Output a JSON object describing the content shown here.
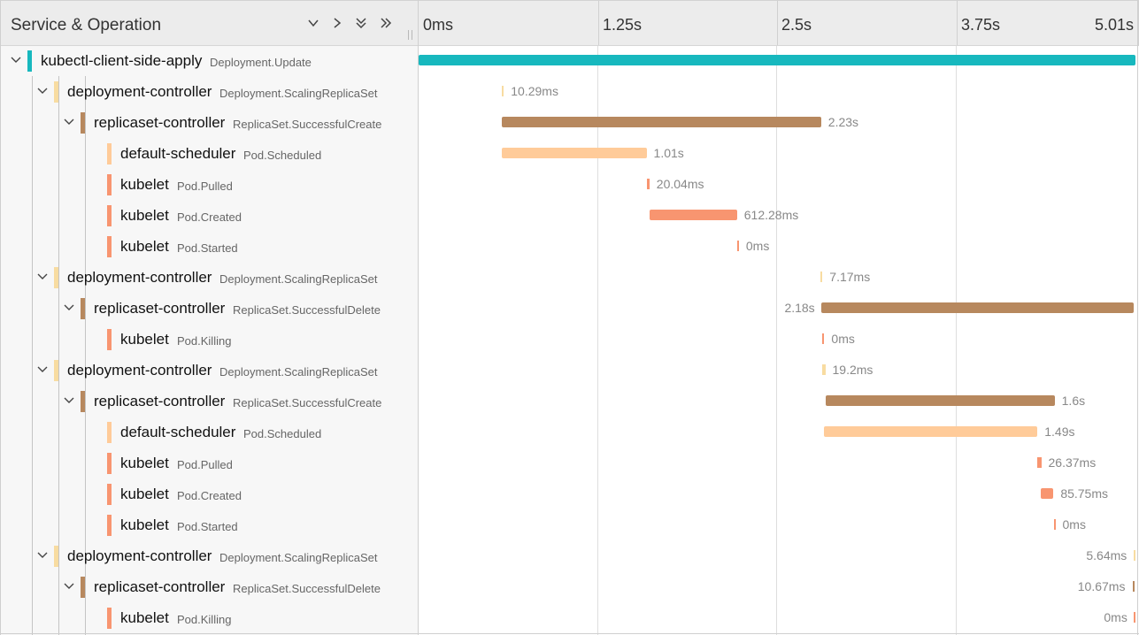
{
  "header": {
    "title": "Service & Operation",
    "ticks": [
      "0ms",
      "1.25s",
      "2.5s",
      "3.75s",
      "5.01s"
    ]
  },
  "colors": {
    "kubectl": "#17b8be",
    "deployment": "#f8dca1",
    "replicaset": "#b7885e",
    "scheduler": "#ffcb99",
    "kubelet": "#f89570"
  },
  "timeline": {
    "total_seconds": 5.01
  },
  "spans": [
    {
      "depth": 0,
      "service": "kubectl-client-side-apply",
      "operation": "Deployment.Update",
      "color_key": "kubectl",
      "has_children": true,
      "start": 0,
      "duration": 5.01,
      "duration_label": ""
    },
    {
      "depth": 1,
      "service": "deployment-controller",
      "operation": "Deployment.ScalingReplicaSet",
      "color_key": "deployment",
      "has_children": true,
      "start": 0.583,
      "duration": 0.01029,
      "duration_label": "10.29ms"
    },
    {
      "depth": 2,
      "service": "replicaset-controller",
      "operation": "ReplicaSet.SuccessfulCreate",
      "color_key": "replicaset",
      "has_children": true,
      "start": 0.583,
      "duration": 2.23,
      "duration_label": "2.23s"
    },
    {
      "depth": 3,
      "service": "default-scheduler",
      "operation": "Pod.Scheduled",
      "color_key": "scheduler",
      "has_children": false,
      "start": 0.583,
      "duration": 1.01,
      "duration_label": "1.01s"
    },
    {
      "depth": 3,
      "service": "kubelet",
      "operation": "Pod.Pulled",
      "color_key": "kubelet",
      "has_children": false,
      "start": 1.593,
      "duration": 0.02004,
      "duration_label": "20.04ms"
    },
    {
      "depth": 3,
      "service": "kubelet",
      "operation": "Pod.Created",
      "color_key": "kubelet",
      "has_children": false,
      "start": 1.613,
      "duration": 0.61228,
      "duration_label": "612.28ms"
    },
    {
      "depth": 3,
      "service": "kubelet",
      "operation": "Pod.Started",
      "color_key": "kubelet",
      "has_children": false,
      "start": 2.226,
      "duration": 0,
      "duration_label": "0ms"
    },
    {
      "depth": 1,
      "service": "deployment-controller",
      "operation": "Deployment.ScalingReplicaSet",
      "color_key": "deployment",
      "has_children": true,
      "start": 2.81,
      "duration": 0.00717,
      "duration_label": "7.17ms"
    },
    {
      "depth": 2,
      "service": "replicaset-controller",
      "operation": "ReplicaSet.SuccessfulDelete",
      "color_key": "replicaset",
      "has_children": true,
      "start": 2.817,
      "duration": 2.18,
      "duration_label": "2.18s"
    },
    {
      "depth": 3,
      "service": "kubelet",
      "operation": "Pod.Killing",
      "color_key": "kubelet",
      "has_children": false,
      "start": 2.823,
      "duration": 0,
      "duration_label": "0ms"
    },
    {
      "depth": 1,
      "service": "deployment-controller",
      "operation": "Deployment.ScalingReplicaSet",
      "color_key": "deployment",
      "has_children": true,
      "start": 2.823,
      "duration": 0.0192,
      "duration_label": "19.2ms"
    },
    {
      "depth": 2,
      "service": "replicaset-controller",
      "operation": "ReplicaSet.SuccessfulCreate",
      "color_key": "replicaset",
      "has_children": true,
      "start": 2.845,
      "duration": 1.6,
      "duration_label": "1.6s"
    },
    {
      "depth": 3,
      "service": "default-scheduler",
      "operation": "Pod.Scheduled",
      "color_key": "scheduler",
      "has_children": false,
      "start": 2.835,
      "duration": 1.49,
      "duration_label": "1.49s"
    },
    {
      "depth": 3,
      "service": "kubelet",
      "operation": "Pod.Pulled",
      "color_key": "kubelet",
      "has_children": false,
      "start": 4.325,
      "duration": 0.02637,
      "duration_label": "26.37ms"
    },
    {
      "depth": 3,
      "service": "kubelet",
      "operation": "Pod.Created",
      "color_key": "kubelet",
      "has_children": false,
      "start": 4.351,
      "duration": 0.08575,
      "duration_label": "85.75ms"
    },
    {
      "depth": 3,
      "service": "kubelet",
      "operation": "Pod.Started",
      "color_key": "kubelet",
      "has_children": false,
      "start": 4.438,
      "duration": 0,
      "duration_label": "0ms"
    },
    {
      "depth": 1,
      "service": "deployment-controller",
      "operation": "Deployment.ScalingReplicaSet",
      "color_key": "deployment",
      "has_children": true,
      "start": 5.0,
      "duration": 0.00564,
      "duration_label": "5.64ms"
    },
    {
      "depth": 2,
      "service": "replicaset-controller",
      "operation": "ReplicaSet.SuccessfulDelete",
      "color_key": "replicaset",
      "has_children": true,
      "start": 4.99,
      "duration": 0.01067,
      "duration_label": "10.67ms"
    },
    {
      "depth": 3,
      "service": "kubelet",
      "operation": "Pod.Killing",
      "color_key": "kubelet",
      "has_children": false,
      "start": 5.0,
      "duration": 0,
      "duration_label": "0ms"
    }
  ]
}
